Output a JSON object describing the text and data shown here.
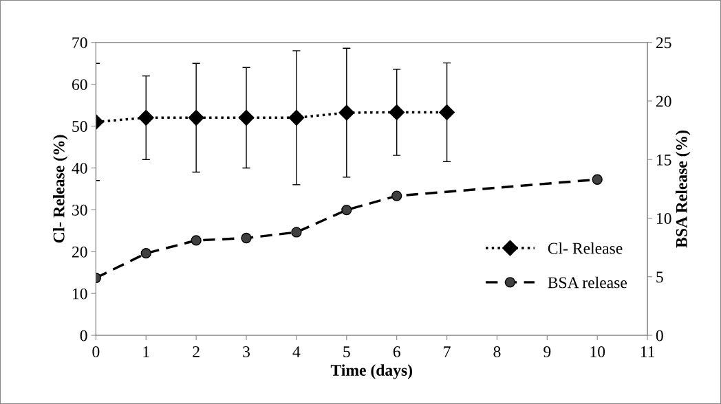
{
  "chart_data": {
    "type": "line",
    "xlabel": "Time (days)",
    "ylabel": "Cl- Release (%)",
    "y2label": "BSA Release (%)",
    "xlim": [
      0,
      11
    ],
    "xticks": [
      0,
      1,
      2,
      3,
      4,
      5,
      6,
      7,
      8,
      9,
      10,
      11
    ],
    "ylim": [
      0,
      70
    ],
    "yticks": [
      0,
      10,
      20,
      30,
      40,
      50,
      60,
      70
    ],
    "y2lim": [
      0,
      25
    ],
    "y2ticks": [
      0,
      5,
      10,
      15,
      20,
      25
    ],
    "grid": false,
    "legend": "bottom right",
    "series": [
      {
        "name": "Cl- Release",
        "color": "#000000",
        "marker": "diamond",
        "line_style": "dotted",
        "x": [
          0,
          1,
          2,
          3,
          4,
          5,
          6,
          7
        ],
        "values": [
          51,
          52,
          52,
          52,
          52,
          53.2,
          53.3,
          53.3
        ],
        "errors": [
          14,
          10,
          13,
          12,
          16,
          15.4,
          10.3,
          11.8
        ]
      },
      {
        "name": "BSA release",
        "color": "#000000",
        "marker": "circle",
        "line_style": "dashed",
        "axis": "y2",
        "x": [
          0,
          1,
          2,
          3,
          4,
          5,
          6,
          10
        ],
        "values": [
          4.9,
          7.0,
          8.1,
          8.3,
          8.8,
          10.7,
          11.9,
          13.3
        ]
      }
    ]
  }
}
